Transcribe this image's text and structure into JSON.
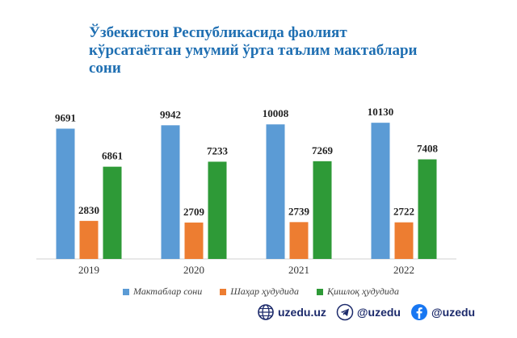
{
  "title": {
    "line1": "Ўзбекистон Республикасида фаолият",
    "line2": "кўрсатаётган умумий ўрта таълим мактаблари",
    "line3": "сони"
  },
  "chart_data": {
    "type": "bar",
    "categories": [
      "2019",
      "2020",
      "2021",
      "2022"
    ],
    "series": [
      {
        "name": "Мактаблар сони",
        "color": "#5b9bd5",
        "values": [
          9691,
          9942,
          10008,
          10130
        ]
      },
      {
        "name": "Шаҳар ҳудудида",
        "color": "#ed7d31",
        "values": [
          2830,
          2709,
          2739,
          2722
        ]
      },
      {
        "name": "Қишлоқ ҳудудида",
        "color": "#2e9a37",
        "values": [
          6861,
          7233,
          7269,
          7408
        ]
      }
    ],
    "ylim": [
      0,
      12000
    ],
    "grid": false,
    "legend_position": "bottom"
  },
  "footer": {
    "site": "uzedu.uz",
    "telegram": "@uzedu",
    "facebook": "@uzedu",
    "icons": [
      "globe-icon",
      "telegram-icon",
      "facebook-icon"
    ]
  }
}
